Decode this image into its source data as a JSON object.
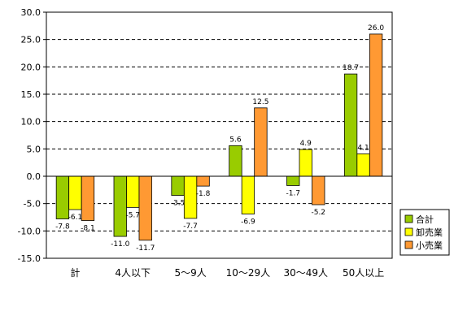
{
  "chart_data": {
    "type": "bar",
    "categories": [
      "計",
      "4人以下",
      "5～9人",
      "10～29人",
      "30～49人",
      "50人以上"
    ],
    "series": [
      {
        "name": "合計",
        "color": "#99cc00",
        "values": [
          -7.8,
          -11.0,
          -3.5,
          5.6,
          -1.7,
          18.7
        ]
      },
      {
        "name": "卸売業",
        "color": "#ffff00",
        "values": [
          -6.1,
          -5.7,
          -7.7,
          -6.9,
          4.9,
          4.1
        ]
      },
      {
        "name": "小売業",
        "color": "#ff9933",
        "values": [
          -8.1,
          -11.7,
          -1.8,
          12.5,
          -5.2,
          26.0
        ]
      }
    ],
    "ylim": [
      -15.0,
      30.0
    ],
    "yticks": [
      "30.0",
      "25.0",
      "20.0",
      "15.0",
      "10.0",
      "5.0",
      "0.0",
      "-5.0",
      "-10.0",
      "-15.0"
    ],
    "grid": true,
    "legend_position": "right"
  }
}
